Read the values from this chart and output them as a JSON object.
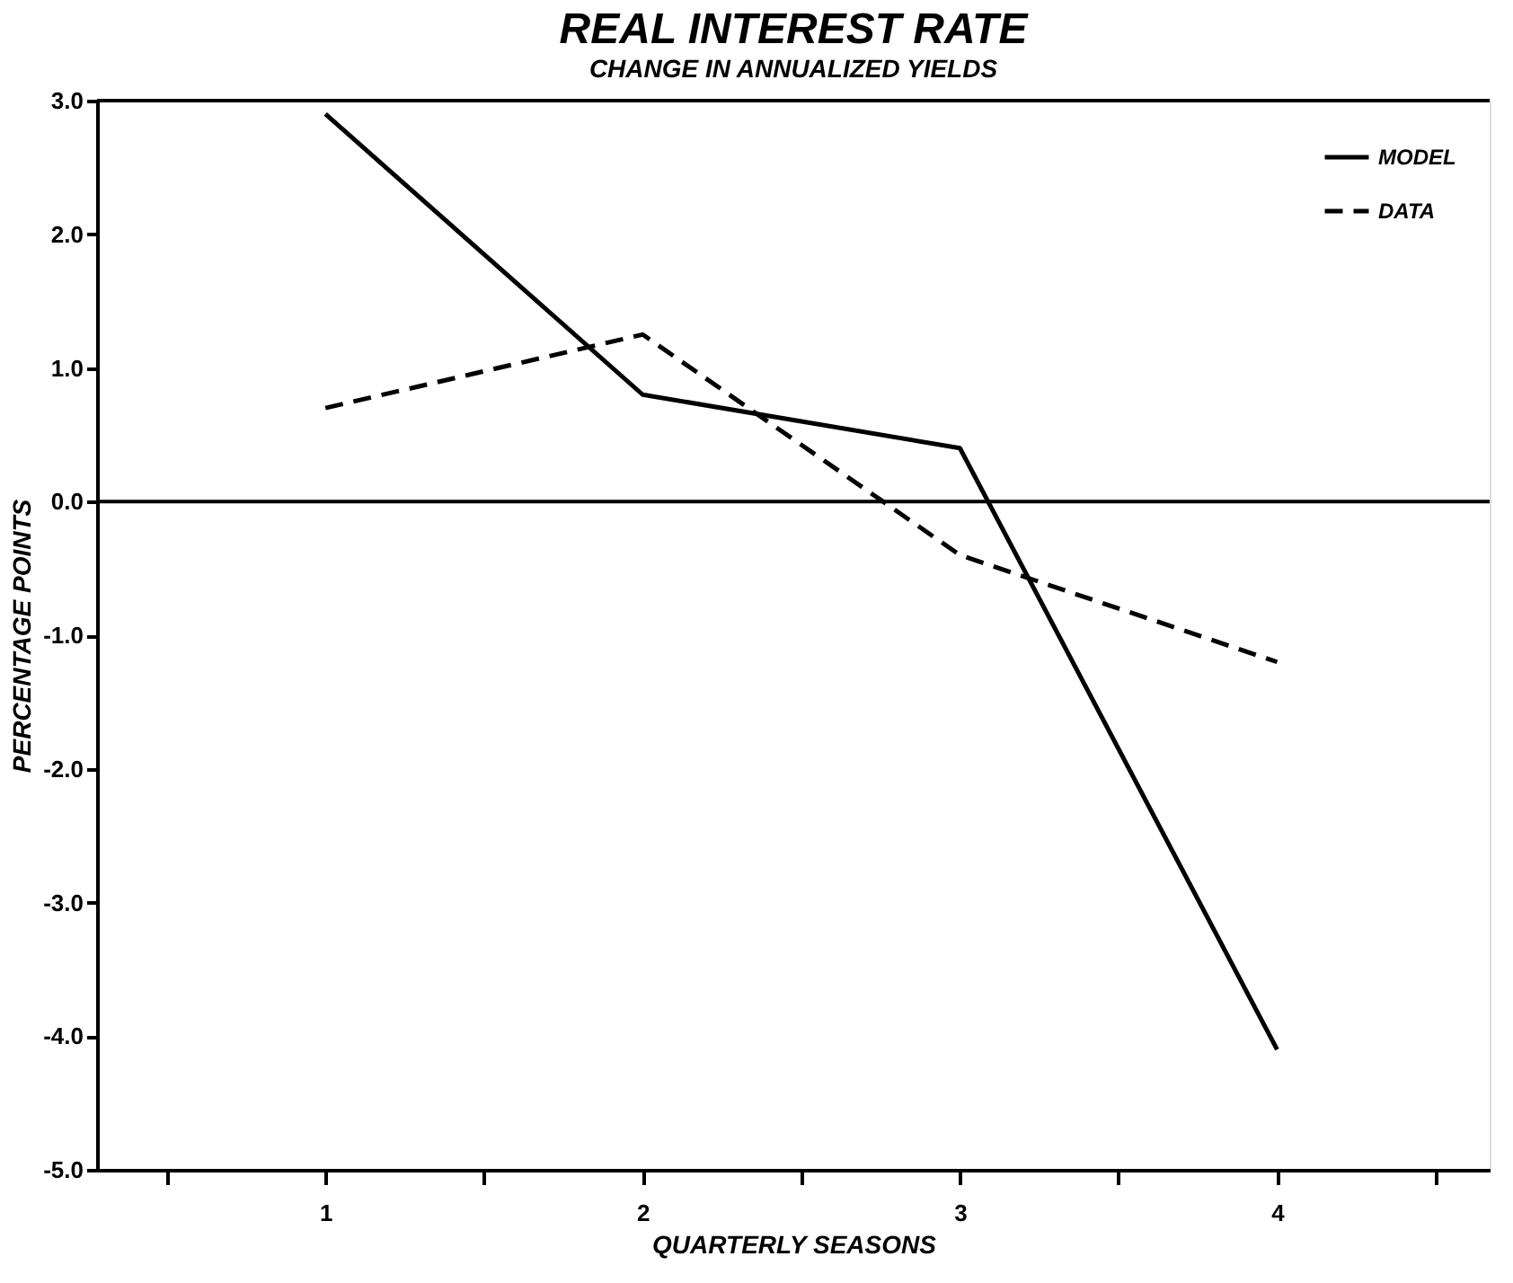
{
  "chart_data": {
    "type": "line",
    "title": "REAL INTEREST RATE",
    "subtitle": "CHANGE IN ANNUALIZED YIELDS",
    "xlabel": "QUARTERLY SEASONS",
    "ylabel": "PERCENTAGE POINTS",
    "x": [
      1,
      2,
      3,
      4
    ],
    "series": [
      {
        "name": "MODEL",
        "color": "#000000",
        "line_style": "solid",
        "values": [
          2.9,
          0.8,
          0.4,
          -4.1
        ]
      },
      {
        "name": "DATA",
        "color": "#000000",
        "line_style": "dashed",
        "values": [
          0.7,
          1.25,
          -0.4,
          -1.2
        ]
      }
    ],
    "xlim": [
      0.28,
      4.67
    ],
    "xticks": [
      {
        "value": 0.5,
        "label": null
      },
      1,
      {
        "value": 1.5,
        "label": null
      },
      2,
      {
        "value": 2.5,
        "label": null
      },
      3,
      {
        "value": 3.5,
        "label": null
      },
      4,
      {
        "value": 4.5,
        "label": null
      }
    ],
    "ylim": [
      -5.0,
      3.0
    ],
    "yticks": [
      {
        "value": -5,
        "label": "-5.0"
      },
      {
        "value": -4,
        "label": "-4.0"
      },
      {
        "value": -3,
        "label": "-3.0"
      },
      {
        "value": -2,
        "label": "-2.0"
      },
      {
        "value": -1,
        "label": "-1.0"
      },
      {
        "value": 0,
        "label": "0.0"
      },
      {
        "value": 1,
        "label": "1.0"
      },
      {
        "value": 2,
        "label": "2.0"
      },
      {
        "value": 3,
        "label": "3.0"
      }
    ],
    "ref_lines": [
      {
        "axis": "y",
        "value": 0,
        "label": null
      }
    ],
    "grid": false,
    "legend": "top right",
    "marker": "none"
  }
}
